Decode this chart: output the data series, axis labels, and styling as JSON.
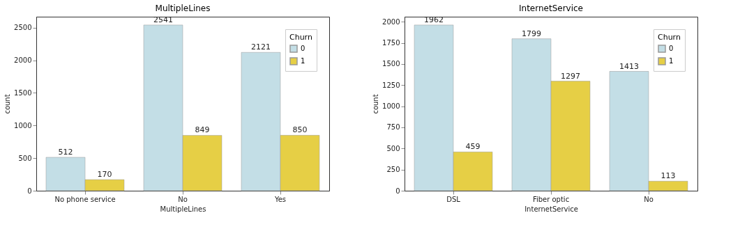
{
  "chart_data": [
    {
      "type": "bar",
      "title": "MultipleLines",
      "xlabel": "MultipleLines",
      "ylabel": "count",
      "legend_title": "Churn",
      "legend": "top right",
      "data_labels": true,
      "grid": false,
      "categories": [
        "No phone service",
        "No",
        "Yes"
      ],
      "series": [
        {
          "name": "0",
          "color": "#c3dee6",
          "values": [
            512,
            2541,
            2121
          ]
        },
        {
          "name": "1",
          "color": "#e6cf45",
          "values": [
            170,
            849,
            850
          ]
        }
      ],
      "ylim": [
        0,
        2668
      ],
      "yticks": [
        0,
        500,
        1000,
        1500,
        2000,
        2500
      ]
    },
    {
      "type": "bar",
      "title": "InternetService",
      "xlabel": "InternetService",
      "ylabel": "count",
      "legend_title": "Churn",
      "legend": "top right",
      "data_labels": true,
      "grid": false,
      "categories": [
        "DSL",
        "Fiber optic",
        "No"
      ],
      "series": [
        {
          "name": "0",
          "color": "#c3dee6",
          "values": [
            1962,
            1799,
            1413
          ]
        },
        {
          "name": "1",
          "color": "#e6cf45",
          "values": [
            459,
            1297,
            113
          ]
        }
      ],
      "ylim": [
        0,
        2060
      ],
      "yticks": [
        0,
        250,
        500,
        750,
        1000,
        1250,
        1500,
        1750,
        2000
      ]
    }
  ]
}
